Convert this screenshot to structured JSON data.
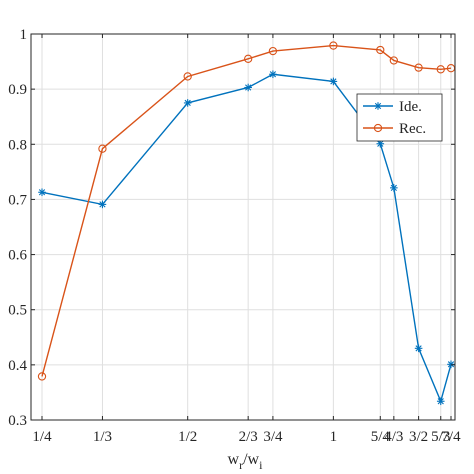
{
  "chart_data": {
    "type": "line",
    "x_scale": "log2",
    "x": [
      0.25,
      0.3333,
      0.5,
      0.6667,
      0.75,
      1,
      1.25,
      1.3333,
      1.5,
      1.6667,
      1.75
    ],
    "x_tick_labels": [
      "1/4",
      "1/3",
      "1/2",
      "2/3",
      "3/4",
      "1",
      "5/4",
      "4/3",
      "3/2",
      "5/3",
      "7/4"
    ],
    "xlabel": {
      "main1": "w",
      "sub1": "r",
      "slash": "/",
      "main2": "w",
      "sub2": "i"
    },
    "ylabel": "",
    "ylim": [
      0.3,
      1.0
    ],
    "y_ticks": [
      "0.3",
      "0.4",
      "0.5",
      "0.6",
      "0.7",
      "0.8",
      "0.9",
      "1"
    ],
    "grid": true,
    "legend_position": "top-right",
    "series": [
      {
        "name": "Ide.",
        "marker": "asterisk",
        "color": "#0072BD",
        "values": [
          0.713,
          0.691,
          0.875,
          0.903,
          0.927,
          0.914,
          0.801,
          0.721,
          0.43,
          0.334,
          0.401
        ]
      },
      {
        "name": "Rec.",
        "marker": "circle",
        "color": "#D95319",
        "values": [
          0.379,
          0.792,
          0.923,
          0.955,
          0.969,
          0.979,
          0.971,
          0.952,
          0.939,
          0.936,
          0.938
        ]
      }
    ]
  }
}
